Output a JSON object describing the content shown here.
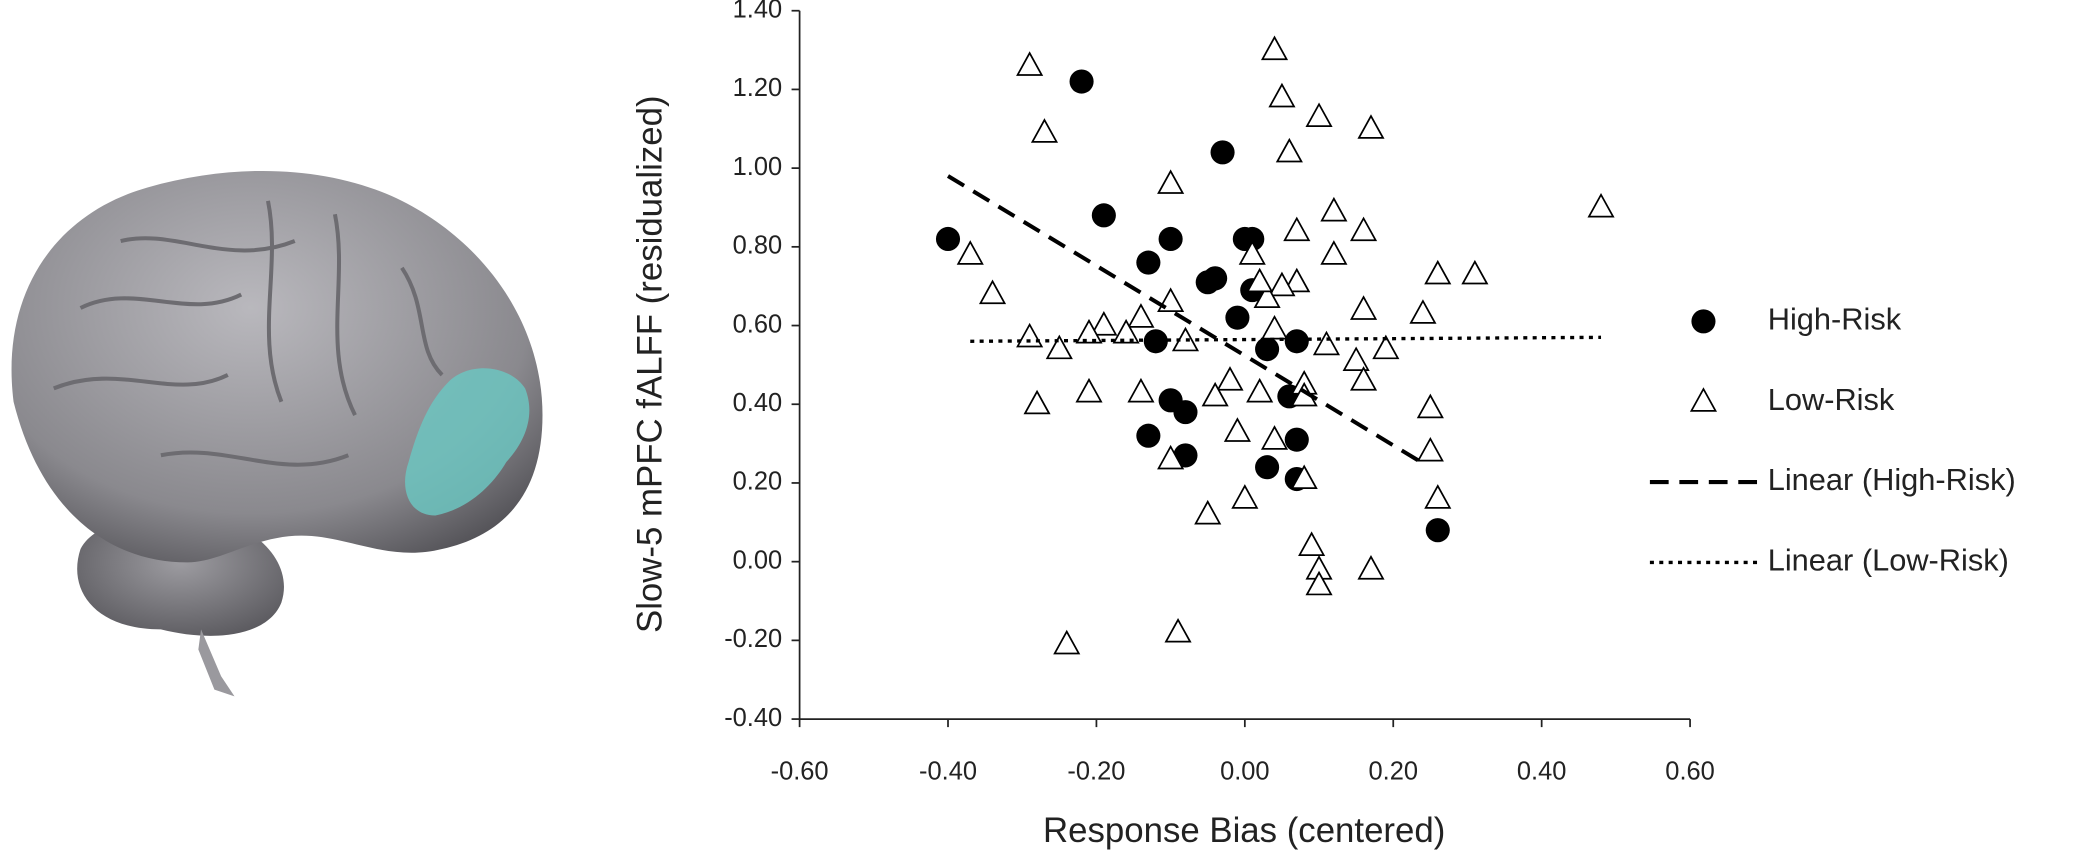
{
  "chart_data": {
    "type": "scatter",
    "x_label": "Response Bias (centered)",
    "y_label": "Slow-5 mPFC fALFF (residualized)",
    "xlim": [
      -0.6,
      0.6
    ],
    "ylim": [
      -0.4,
      1.4
    ],
    "xticks": [
      {
        "value": -0.6,
        "label": "-0.60"
      },
      {
        "value": -0.4,
        "label": "-0.40"
      },
      {
        "value": -0.2,
        "label": "-0.20"
      },
      {
        "value": 0,
        "label": "0.00"
      },
      {
        "value": 0.2,
        "label": "0.20"
      },
      {
        "value": 0.4,
        "label": "0.40"
      },
      {
        "value": 0.6,
        "label": "0.60"
      }
    ],
    "yticks": [
      {
        "value": -0.4,
        "label": "-0.40"
      },
      {
        "value": -0.2,
        "label": "-0.20"
      },
      {
        "value": 0,
        "label": "0.00"
      },
      {
        "value": 0.2,
        "label": "0.20"
      },
      {
        "value": 0.4,
        "label": "0.40"
      },
      {
        "value": 0.6,
        "label": "0.60"
      },
      {
        "value": 0.8,
        "label": "0.80"
      },
      {
        "value": 1.0,
        "label": "1.00"
      },
      {
        "value": 1.2,
        "label": "1.20"
      },
      {
        "value": 1.4,
        "label": "1.40"
      }
    ],
    "grid": false,
    "legend": "right",
    "series": [
      {
        "name": "High-Risk",
        "marker": "circle",
        "color": "#000000",
        "x": [
          -0.4,
          -0.22,
          -0.19,
          -0.03,
          -0.13,
          -0.1,
          -0.05,
          -0.04,
          0.0,
          0.01,
          0.01,
          -0.01,
          -0.12,
          0.03,
          0.07,
          -0.1,
          -0.08,
          0.06,
          -0.13,
          -0.08,
          0.07,
          0.03,
          0.07,
          0.26
        ],
        "values": [
          0.82,
          1.22,
          0.88,
          1.04,
          0.76,
          0.82,
          0.71,
          0.72,
          0.82,
          0.82,
          0.69,
          0.62,
          0.56,
          0.54,
          0.56,
          0.41,
          0.38,
          0.42,
          0.32,
          0.27,
          0.31,
          0.24,
          0.21,
          0.08
        ]
      },
      {
        "name": "Low-Risk",
        "marker": "triangle",
        "color": "#000000",
        "x": [
          -0.29,
          0.04,
          0.05,
          -0.27,
          0.1,
          0.17,
          0.06,
          -0.1,
          0.12,
          0.48,
          0.07,
          0.16,
          -0.37,
          0.01,
          0.12,
          0.26,
          0.31,
          -0.34,
          0.07,
          0.05,
          0.03,
          0.02,
          -0.1,
          0.16,
          0.24,
          -0.14,
          -0.19,
          -0.21,
          -0.29,
          -0.25,
          -0.16,
          0.04,
          -0.08,
          0.19,
          0.15,
          0.11,
          -0.02,
          -0.28,
          -0.21,
          -0.14,
          -0.04,
          0.02,
          0.08,
          0.08,
          0.16,
          0.25,
          -0.01,
          0.04,
          -0.1,
          0.25,
          -0.05,
          0.0,
          0.08,
          0.26,
          0.09,
          0.1,
          0.1,
          0.17,
          -0.09,
          -0.24
        ],
        "values": [
          1.26,
          1.3,
          1.18,
          1.09,
          1.13,
          1.1,
          1.04,
          0.96,
          0.89,
          0.9,
          0.84,
          0.84,
          0.78,
          0.78,
          0.78,
          0.73,
          0.73,
          0.68,
          0.71,
          0.7,
          0.67,
          0.71,
          0.66,
          0.64,
          0.63,
          0.62,
          0.6,
          0.58,
          0.57,
          0.54,
          0.58,
          0.59,
          0.56,
          0.54,
          0.51,
          0.55,
          0.46,
          0.4,
          0.43,
          0.43,
          0.42,
          0.43,
          0.45,
          0.42,
          0.46,
          0.39,
          0.33,
          0.31,
          0.26,
          0.28,
          0.12,
          0.16,
          0.21,
          0.16,
          0.04,
          -0.02,
          -0.06,
          -0.02,
          -0.18,
          -0.21
        ]
      },
      {
        "name": "Linear (High-Risk)",
        "marker": "dashed",
        "color": "#000000",
        "x": [
          -0.4,
          0.24
        ],
        "values": [
          0.98,
          0.25
        ]
      },
      {
        "name": "Linear (Low-Risk)",
        "marker": "dotted",
        "color": "#000000",
        "x": [
          -0.37,
          0.48
        ],
        "values": [
          0.56,
          0.57
        ]
      }
    ]
  }
}
